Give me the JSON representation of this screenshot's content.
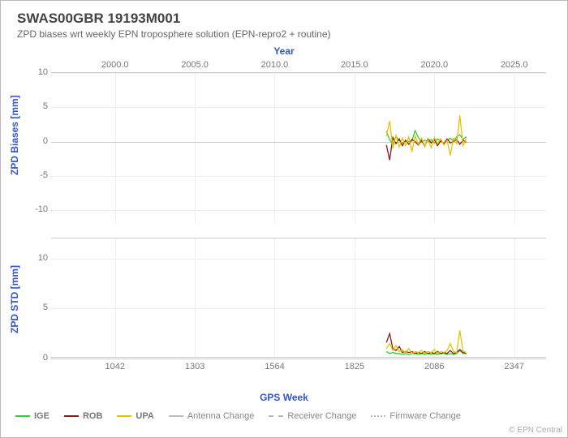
{
  "title": "SWAS00GBR 19193M001",
  "subtitle": "ZPD biases wrt weekly EPN troposphere solution (EPN-repro2 + routine)",
  "credit": "© EPN Central",
  "top_axis": {
    "title": "Year",
    "ticks": [
      "2000.0",
      "2005.0",
      "2010.0",
      "2015.0",
      "2020.0",
      "2025.0"
    ],
    "min": 1996,
    "max": 2027
  },
  "bottom_axis": {
    "title": "GPS Week",
    "ticks": [
      "1042",
      "1303",
      "1564",
      "1825",
      "2086",
      "2347"
    ]
  },
  "panels": {
    "biases": {
      "title": "ZPD Biases [mm]",
      "ymin": -12,
      "ymax": 10,
      "yticks": [
        10,
        5,
        0,
        -5,
        -10
      ]
    },
    "std": {
      "title": "ZPD STD [mm]",
      "ymin": 0,
      "ymax": 12,
      "yticks": [
        10,
        5,
        0
      ]
    }
  },
  "colors": {
    "IGE": "#33cc33",
    "ROB": "#8b1a1a",
    "UPA": "#e6c200",
    "change": "#bbbbbb",
    "grid": "#eeeeee",
    "axis": "#cccccc",
    "text": "#666666",
    "accent": "#3355cc"
  },
  "legend": [
    {
      "label": "IGE",
      "color": "#33cc33",
      "style": "solid"
    },
    {
      "label": "ROB",
      "color": "#8b1a1a",
      "style": "solid"
    },
    {
      "label": "UPA",
      "color": "#e6c200",
      "style": "solid"
    },
    {
      "label": "Antenna Change",
      "color": "#bbbbbb",
      "style": "solid"
    },
    {
      "label": "Receiver Change",
      "color": "#bbbbbb",
      "style": "dash"
    },
    {
      "label": "Firmware Change",
      "color": "#bbbbbb",
      "style": "dot"
    }
  ],
  "x_years": [
    2017.0,
    2017.2,
    2017.4,
    2017.6,
    2017.8,
    2018.0,
    2018.2,
    2018.4,
    2018.6,
    2018.8,
    2019.0,
    2019.2,
    2019.4,
    2019.6,
    2019.8,
    2020.0,
    2020.2,
    2020.4,
    2020.6,
    2020.8,
    2021.0,
    2021.2,
    2021.4,
    2021.6,
    2021.8,
    2022.0
  ],
  "series": {
    "biases": {
      "IGE": [
        1.5,
        0.3,
        -0.4,
        0.8,
        0.1,
        -0.2,
        0.0,
        0.0,
        0.1,
        1.6,
        0.6,
        -0.1,
        0.2,
        0.0,
        0.3,
        -0.2,
        0.4,
        0.1,
        -0.3,
        0.2,
        0.5,
        0.0,
        0.7,
        1.0,
        0.3,
        0.7
      ],
      "ROB": [
        -0.5,
        -2.7,
        0.6,
        -0.3,
        0.4,
        -0.6,
        0.2,
        -0.4,
        0.3,
        0.0,
        -0.5,
        0.2,
        -0.7,
        0.4,
        -0.2,
        0.3,
        -0.6,
        0.1,
        -0.3,
        0.4,
        -0.2,
        0.0,
        0.3,
        -0.4,
        0.2,
        -0.1
      ],
      "UPA": [
        0.8,
        3.0,
        -1.0,
        0.9,
        -0.8,
        0.5,
        -0.6,
        0.7,
        -1.5,
        0.8,
        -0.4,
        0.5,
        -0.7,
        0.3,
        -0.9,
        0.6,
        -0.3,
        0.4,
        -0.5,
        0.2,
        -2.0,
        0.5,
        -0.3,
        3.8,
        -0.6,
        0.4
      ]
    },
    "std": {
      "IGE": [
        0.7,
        0.5,
        0.6,
        0.5,
        0.5,
        0.4,
        0.5,
        0.4,
        0.5,
        0.5,
        0.4,
        0.5,
        0.4,
        0.5,
        0.4,
        0.5,
        0.4,
        0.5,
        0.5,
        0.4,
        0.5,
        0.4,
        0.5,
        0.8,
        0.5,
        0.5
      ],
      "ROB": [
        1.6,
        2.5,
        1.0,
        0.8,
        1.2,
        0.6,
        0.7,
        0.6,
        0.7,
        0.5,
        0.6,
        0.5,
        0.7,
        0.5,
        0.6,
        0.5,
        0.7,
        0.5,
        0.6,
        0.5,
        0.8,
        0.5,
        0.6,
        0.9,
        0.6,
        0.5
      ],
      "UPA": [
        1.0,
        1.5,
        0.8,
        1.3,
        0.7,
        0.9,
        0.6,
        1.0,
        0.5,
        0.7,
        0.6,
        0.8,
        0.5,
        0.7,
        0.6,
        0.9,
        0.5,
        0.7,
        0.6,
        0.8,
        1.5,
        0.7,
        0.6,
        2.8,
        0.7,
        0.6
      ]
    }
  }
}
